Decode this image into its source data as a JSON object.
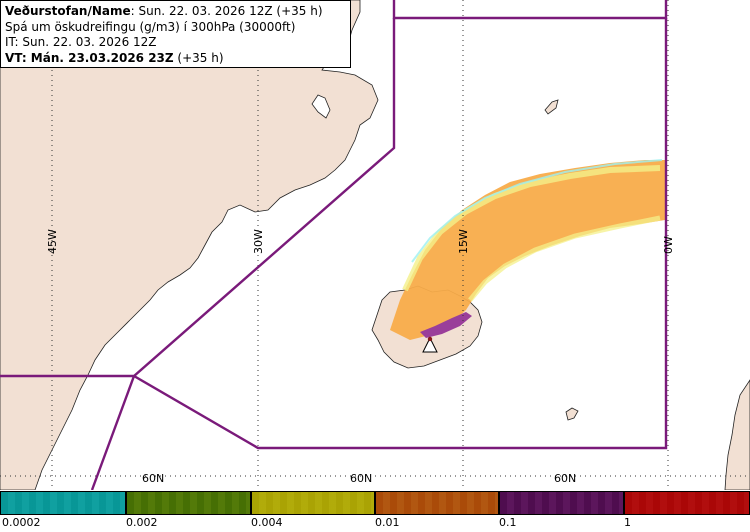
{
  "info": {
    "line1_label": "Veðurstofan/Name",
    "line1_value": ": Sun. 22. 03. 2026 12Z (+35 h)",
    "line2": "Spá um öskudreifingu (g/m3) í 300hPa (30000ft)",
    "line3": "IT: Sun. 22. 03. 2026 12Z",
    "line4": "VT: Mán. 23.03.2026 23Z",
    "line4_suffix": " (+35 h)"
  },
  "map": {
    "lon_labels": [
      "45W",
      "30W",
      "15W",
      "0W"
    ],
    "lat_labels": [
      "60N",
      "60N",
      "60N"
    ],
    "land_color": "#f2e0d3",
    "ocean_color": "#ffffff",
    "boundary_color": "#7a1a7a",
    "source_symbol": "volcano-triangle-icon"
  },
  "legend": {
    "ticks": [
      "0.0002",
      "0.002",
      "0.004",
      "0.01",
      "0.1",
      "1"
    ],
    "colors": [
      "#2ec4c4",
      "#86a81e",
      "#d0cc20",
      "#d08a30",
      "#8e3a8e",
      "#d02a2a"
    ]
  }
}
